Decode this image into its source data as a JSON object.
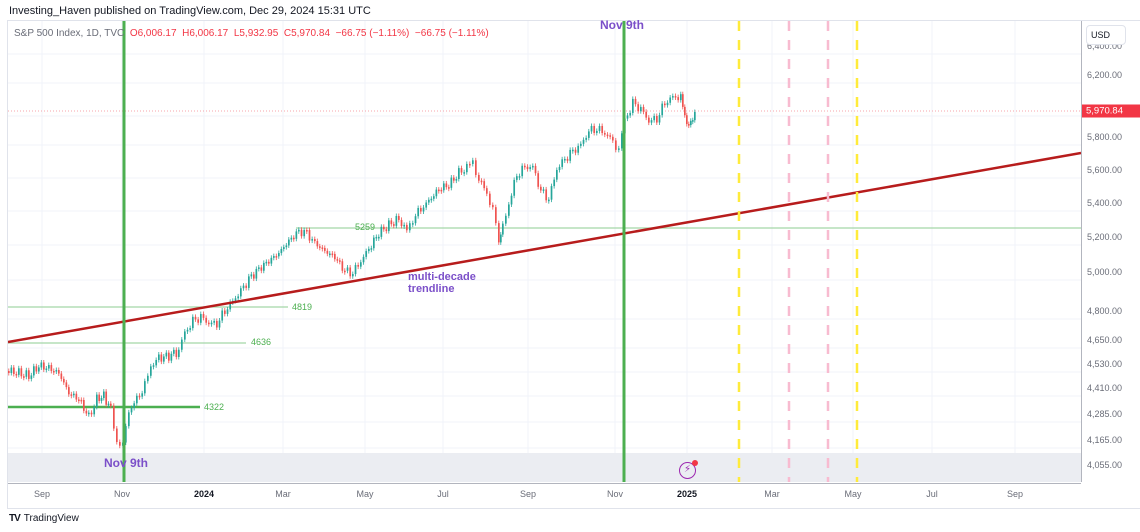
{
  "header": {
    "published": "Investing_Haven published on TradingView.com, Dec 29, 2024 15:31 UTC"
  },
  "legend": {
    "symbol": "S&P 500 Index, 1D, TVC",
    "open": "O6,006.17",
    "high": "H6,006.17",
    "low": "L5,932.95",
    "close": "C5,970.84",
    "change1": "−66.75 (−1.11%)",
    "change2": "−66.75 (−1.11%)"
  },
  "price_axis": {
    "currency": "USD",
    "last_price": "5,970.84",
    "ticks": [
      "6,400.00",
      "6,200.00",
      "6,000.00",
      "5,800.00",
      "5,600.00",
      "5,400.00",
      "5,200.00",
      "5,000.00",
      "4,800.00",
      "4,650.00",
      "4,530.00",
      "4,410.00",
      "4,285.00",
      "4,165.00",
      "4,055.00"
    ]
  },
  "time_axis": {
    "ticks": [
      {
        "label": "Sep",
        "bold": false
      },
      {
        "label": "Nov",
        "bold": false
      },
      {
        "label": "2024",
        "bold": true
      },
      {
        "label": "Mar",
        "bold": false
      },
      {
        "label": "May",
        "bold": false
      },
      {
        "label": "Jul",
        "bold": false
      },
      {
        "label": "Sep",
        "bold": false
      },
      {
        "label": "Nov",
        "bold": false
      },
      {
        "label": "2025",
        "bold": true
      },
      {
        "label": "Mar",
        "bold": false
      },
      {
        "label": "May",
        "bold": false
      },
      {
        "label": "Jul",
        "bold": false
      },
      {
        "label": "Sep",
        "bold": false
      }
    ]
  },
  "annotations": {
    "nov9_top": "Nov 9th",
    "nov9_bottom": "Nov 9th",
    "trendline_line1": "multi-decade",
    "trendline_line2": "trendline",
    "level_5259": "5259",
    "level_4819": "4819",
    "level_4636": "4636",
    "level_4322": "4322"
  },
  "footer": {
    "logo": "TV",
    "brand": "TradingView"
  },
  "colors": {
    "up": "#26a69a",
    "down": "#ef5350",
    "trendline": "#b71c1c",
    "level": "#81c784",
    "vline": "#4caf50",
    "dash_yellow": "#ffeb3b",
    "dash_pink": "#f8bbd0",
    "annotation": "#7b4fc9"
  },
  "chart_data": {
    "type": "candlestick",
    "title": "S&P 500 Index, 1D, TVC",
    "instrument": "S&P 500 Index",
    "interval": "1D",
    "last_ohlc": {
      "open": 6006.17,
      "high": 6006.17,
      "low": 5932.95,
      "close": 5970.84,
      "change": -66.75,
      "change_pct": -1.11
    },
    "x_range": [
      "Aug 2023",
      "Oct 2025"
    ],
    "ylim": [
      4000,
      6400
    ],
    "y_scale": "log",
    "approx_monthly_close": [
      {
        "x": "Sep 2023",
        "y": 4290
      },
      {
        "x": "Oct 2023",
        "y": 4190
      },
      {
        "x": "Nov 2023",
        "y": 4560
      },
      {
        "x": "Dec 2023",
        "y": 4770
      },
      {
        "x": "Jan 2024",
        "y": 4850
      },
      {
        "x": "Feb 2024",
        "y": 5100
      },
      {
        "x": "Mar 2024",
        "y": 5250
      },
      {
        "x": "Apr 2024",
        "y": 5040
      },
      {
        "x": "May 2024",
        "y": 5280
      },
      {
        "x": "Jun 2024",
        "y": 5460
      },
      {
        "x": "Jul 2024",
        "y": 5520
      },
      {
        "x": "Aug 2024",
        "y": 5650
      },
      {
        "x": "Sep 2024",
        "y": 5760
      },
      {
        "x": "Oct 2024",
        "y": 5710
      },
      {
        "x": "Nov 2024",
        "y": 6030
      },
      {
        "x": "Dec 2024",
        "y": 5970
      }
    ],
    "horizontal_levels": [
      5259,
      4819,
      4636,
      4322
    ],
    "vertical_markers": [
      {
        "label": "Nov 9th",
        "x": "Nov 2023",
        "style": "solid",
        "color": "green"
      },
      {
        "label": "Nov 9th",
        "x": "Nov 2024",
        "style": "solid",
        "color": "green"
      },
      {
        "x": "Feb 2025",
        "style": "dashed",
        "color": "yellow"
      },
      {
        "x": "Mar 2025",
        "style": "dashed",
        "color": "pink"
      },
      {
        "x": "Apr 2025",
        "style": "dashed",
        "color": "pink"
      },
      {
        "x": "May 2025",
        "style": "dashed",
        "color": "yellow"
      }
    ],
    "trendline": {
      "label": "multi-decade trendline",
      "from": {
        "x": "Aug 2023",
        "y": 4620
      },
      "to": {
        "x": "Oct 2025",
        "y": 5700
      }
    },
    "annotations": [
      "Nov 9th",
      "Nov 9th",
      "multi-decade trendline"
    ]
  }
}
